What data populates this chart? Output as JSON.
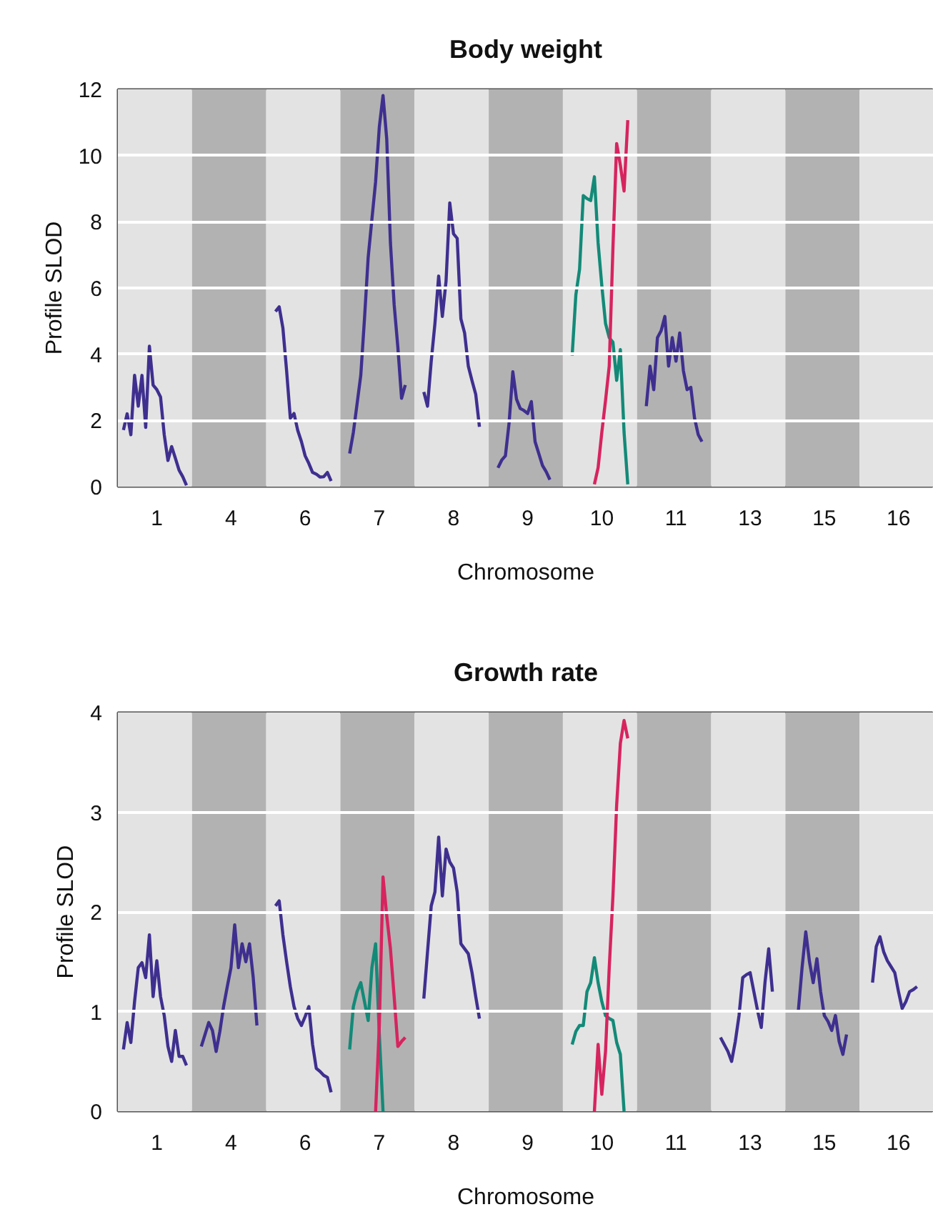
{
  "chart_data": [
    {
      "type": "line",
      "title": "Body weight",
      "xlabel": "Chromosome",
      "ylabel": "Profile SLOD",
      "categories": [
        null,
        null,
        null,
        null,
        null,
        null,
        null,
        null,
        null,
        null,
        "1",
        null,
        null,
        null,
        null,
        null,
        null,
        null,
        null,
        null,
        null,
        null,
        null,
        null,
        null,
        null,
        null,
        null,
        null,
        null,
        "4",
        null,
        null,
        null,
        null,
        null,
        null,
        null,
        null,
        null,
        null,
        null,
        null,
        null,
        null,
        null,
        null,
        null,
        null,
        null,
        "6",
        null,
        null,
        null,
        null,
        null,
        null,
        null,
        null,
        null,
        null,
        null,
        null,
        null,
        null,
        null,
        null,
        null,
        null,
        null,
        "7",
        null,
        null,
        null,
        null,
        null,
        null,
        null,
        null,
        null,
        null,
        null,
        null,
        null,
        null,
        null,
        null,
        null,
        null,
        null,
        "8",
        null,
        null,
        null,
        null,
        null,
        null,
        null,
        null,
        null,
        null,
        null,
        null,
        null,
        null,
        null,
        null,
        null,
        null,
        null,
        "9",
        null,
        null,
        null,
        null,
        null,
        null,
        null,
        null,
        null,
        null,
        null,
        null,
        null,
        null,
        null,
        null,
        null,
        null,
        null,
        "10",
        null,
        null,
        null,
        null,
        null,
        null,
        null,
        null,
        null,
        null,
        null,
        null,
        null,
        null,
        null,
        null,
        null,
        null,
        null,
        "11",
        null,
        null,
        null,
        null,
        null,
        null,
        null,
        null,
        null,
        null,
        null,
        null,
        null,
        null,
        null,
        null,
        null,
        null,
        null,
        "13",
        null,
        null,
        null,
        null,
        null,
        null,
        null,
        null,
        null,
        null,
        null,
        null,
        null,
        null,
        null,
        null,
        null,
        null,
        null,
        "15",
        null,
        null,
        null,
        null,
        null,
        null,
        null,
        null,
        null,
        null,
        null,
        null,
        null,
        null,
        null,
        null,
        null,
        null,
        null,
        "16",
        null,
        null,
        null,
        null,
        null,
        null,
        null,
        null,
        null
      ],
      "ylim": [
        0,
        12
      ],
      "yticks": [
        0,
        2,
        4,
        6,
        8,
        10,
        12
      ],
      "grid": "y",
      "series": [
        {
          "color": "#3e2f8f",
          "values": [
            null,
            1.71,
            2.2,
            1.57,
            3.36,
            2.43,
            3.36,
            1.79,
            4.24,
            3.07,
            2.93,
            2.71,
            1.57,
            0.79,
            1.21,
            0.86,
            0.5,
            0.3,
            0.04,
            null,
            null,
            null,
            null,
            null,
            null,
            null,
            null,
            null,
            null,
            null,
            null,
            null,
            null,
            null,
            null,
            null,
            null,
            null,
            null,
            null,
            null,
            null,
            5.29,
            5.43,
            4.79,
            3.5,
            2.07,
            2.21,
            1.7,
            1.36,
            0.93,
            0.7,
            0.43,
            0.38,
            0.29,
            0.3,
            0.43,
            0.17,
            null,
            null,
            null,
            null,
            1.0,
            1.64,
            2.5,
            3.36,
            5.07,
            6.93,
            8.07,
            9.21,
            10.86,
            11.81,
            10.5,
            7.36,
            5.5,
            4.21,
            2.67,
            3.07,
            null,
            null,
            null,
            null,
            2.86,
            2.43,
            3.79,
            4.93,
            6.36,
            5.14,
            6.21,
            8.57,
            7.64,
            7.5,
            5.07,
            4.64,
            3.64,
            3.2,
            2.79,
            1.81,
            null,
            null,
            null,
            null,
            0.57,
            0.8,
            0.93,
            1.93,
            3.47,
            2.64,
            2.36,
            2.3,
            2.21,
            2.57,
            1.36,
            1.0,
            0.64,
            0.45,
            0.21,
            null,
            null,
            null,
            null,
            null,
            null,
            null,
            null,
            null,
            null,
            null,
            null,
            null,
            null,
            null,
            null,
            null,
            null,
            null,
            null,
            null,
            null,
            null,
            null,
            null,
            2.43,
            3.64,
            2.93,
            4.5,
            4.71,
            5.14,
            3.64,
            4.5,
            3.79,
            4.64,
            3.5,
            2.93,
            3.0,
            2.07,
            1.57,
            1.36,
            null,
            null,
            null,
            null,
            null,
            null,
            null,
            null,
            null,
            null,
            null,
            null,
            null,
            null,
            null,
            null,
            null,
            null,
            null,
            null,
            null,
            null,
            null,
            null,
            null,
            null,
            null,
            null,
            null,
            null,
            null,
            null,
            null,
            null,
            null,
            null,
            null,
            null,
            null,
            null,
            null,
            null,
            null,
            null,
            null,
            null,
            null,
            null,
            null,
            null,
            null,
            null,
            null,
            null,
            null,
            null,
            null,
            null,
            null,
            null,
            null,
            null
          ]
        },
        {
          "color": "#138a78",
          "values": [
            null,
            null,
            null,
            null,
            null,
            null,
            null,
            null,
            null,
            null,
            null,
            null,
            null,
            null,
            null,
            null,
            null,
            null,
            null,
            null,
            null,
            null,
            null,
            null,
            null,
            null,
            null,
            null,
            null,
            null,
            null,
            null,
            null,
            null,
            null,
            null,
            null,
            null,
            null,
            null,
            null,
            null,
            null,
            null,
            null,
            null,
            null,
            null,
            null,
            null,
            null,
            null,
            null,
            null,
            null,
            null,
            null,
            null,
            null,
            null,
            null,
            null,
            null,
            null,
            null,
            null,
            null,
            null,
            null,
            null,
            null,
            null,
            null,
            null,
            null,
            null,
            null,
            null,
            null,
            null,
            null,
            null,
            null,
            null,
            null,
            null,
            null,
            null,
            null,
            null,
            null,
            null,
            null,
            null,
            null,
            null,
            null,
            null,
            null,
            null,
            null,
            null,
            null,
            null,
            null,
            null,
            null,
            null,
            null,
            null,
            null,
            null,
            null,
            null,
            null,
            null,
            null,
            null,
            null,
            null,
            null,
            null,
            3.96,
            5.79,
            6.57,
            8.79,
            8.7,
            8.64,
            9.36,
            7.36,
            6.07,
            4.93,
            4.5,
            4.36,
            3.21,
            4.14,
            1.64,
            0.07,
            null,
            null,
            null,
            null,
            null,
            null,
            null,
            null,
            null,
            null,
            null,
            null,
            null,
            null,
            null,
            null,
            null,
            null,
            null,
            null,
            null,
            null,
            null,
            null,
            null,
            null,
            null,
            null,
            null,
            null,
            null,
            null,
            null,
            null,
            null,
            null,
            null,
            null,
            null,
            null,
            null,
            null,
            null,
            null,
            null,
            null,
            null,
            null,
            null,
            null,
            null,
            null,
            null,
            null,
            null,
            null,
            null,
            null,
            null,
            null,
            null,
            null,
            null,
            null,
            null,
            null,
            null,
            null,
            null,
            null,
            null,
            null,
            null,
            null,
            null,
            null,
            null,
            null,
            null,
            null,
            null,
            null
          ]
        },
        {
          "color": "#d6245f",
          "values": [
            null,
            null,
            null,
            null,
            null,
            null,
            null,
            null,
            null,
            null,
            null,
            null,
            null,
            null,
            null,
            null,
            null,
            null,
            null,
            null,
            null,
            null,
            null,
            null,
            null,
            null,
            null,
            null,
            null,
            null,
            null,
            null,
            null,
            null,
            null,
            null,
            null,
            null,
            null,
            null,
            null,
            null,
            null,
            null,
            null,
            null,
            null,
            null,
            null,
            null,
            null,
            null,
            null,
            null,
            null,
            null,
            null,
            null,
            null,
            null,
            null,
            null,
            null,
            null,
            null,
            null,
            null,
            null,
            null,
            null,
            null,
            null,
            null,
            null,
            null,
            null,
            null,
            null,
            null,
            null,
            null,
            null,
            null,
            null,
            null,
            null,
            null,
            null,
            null,
            null,
            null,
            null,
            null,
            null,
            null,
            null,
            null,
            null,
            null,
            null,
            null,
            null,
            null,
            null,
            null,
            null,
            null,
            null,
            null,
            null,
            null,
            null,
            null,
            null,
            null,
            null,
            null,
            null,
            null,
            null,
            null,
            null,
            null,
            null,
            null,
            null,
            null,
            null,
            0.07,
            0.57,
            1.64,
            2.6,
            3.64,
            7.21,
            10.36,
            9.71,
            8.93,
            11.07,
            null,
            null,
            null,
            null,
            null,
            null,
            null,
            null,
            null,
            null,
            null,
            null,
            null,
            null,
            null,
            null,
            null,
            null,
            null,
            null,
            null,
            null,
            null,
            null,
            null,
            null,
            null,
            null,
            null,
            null,
            null,
            null,
            null,
            null,
            null,
            null,
            null,
            null,
            null,
            null,
            null,
            null,
            null,
            null,
            null,
            null,
            null,
            null,
            null,
            null,
            null,
            null,
            null,
            null,
            null,
            null,
            null,
            null,
            null,
            null,
            null,
            null,
            null,
            null,
            null,
            null,
            null,
            null,
            null,
            null,
            null,
            null,
            null,
            null,
            null,
            null,
            null,
            null,
            null,
            null,
            null,
            null
          ]
        }
      ]
    },
    {
      "type": "line",
      "title": "Growth rate",
      "xlabel": "Chromosome",
      "ylabel": "Profile SLOD",
      "categories": [
        null,
        null,
        null,
        null,
        null,
        null,
        null,
        null,
        null,
        null,
        "1",
        null,
        null,
        null,
        null,
        null,
        null,
        null,
        null,
        null,
        null,
        null,
        null,
        null,
        null,
        null,
        null,
        null,
        null,
        null,
        "4",
        null,
        null,
        null,
        null,
        null,
        null,
        null,
        null,
        null,
        null,
        null,
        null,
        null,
        null,
        null,
        null,
        null,
        null,
        null,
        "6",
        null,
        null,
        null,
        null,
        null,
        null,
        null,
        null,
        null,
        null,
        null,
        null,
        null,
        null,
        null,
        null,
        null,
        null,
        null,
        "7",
        null,
        null,
        null,
        null,
        null,
        null,
        null,
        null,
        null,
        null,
        null,
        null,
        null,
        null,
        null,
        null,
        null,
        null,
        null,
        "8",
        null,
        null,
        null,
        null,
        null,
        null,
        null,
        null,
        null,
        null,
        null,
        null,
        null,
        null,
        null,
        null,
        null,
        null,
        null,
        "9",
        null,
        null,
        null,
        null,
        null,
        null,
        null,
        null,
        null,
        null,
        null,
        null,
        null,
        null,
        null,
        null,
        null,
        null,
        null,
        "10",
        null,
        null,
        null,
        null,
        null,
        null,
        null,
        null,
        null,
        null,
        null,
        null,
        null,
        null,
        null,
        null,
        null,
        null,
        null,
        "11",
        null,
        null,
        null,
        null,
        null,
        null,
        null,
        null,
        null,
        null,
        null,
        null,
        null,
        null,
        null,
        null,
        null,
        null,
        null,
        "13",
        null,
        null,
        null,
        null,
        null,
        null,
        null,
        null,
        null,
        null,
        null,
        null,
        null,
        null,
        null,
        null,
        null,
        null,
        null,
        "15",
        null,
        null,
        null,
        null,
        null,
        null,
        null,
        null,
        null,
        null,
        null,
        null,
        null,
        null,
        null,
        null,
        null,
        null,
        null,
        "16",
        null,
        null,
        null,
        null,
        null,
        null,
        null,
        null,
        null
      ],
      "ylim": [
        0,
        4
      ],
      "yticks": [
        0,
        1,
        2,
        3,
        4
      ],
      "grid": "y",
      "series": [
        {
          "color": "#3e2f8f",
          "values": [
            null,
            0.62,
            0.89,
            0.69,
            1.1,
            1.44,
            1.49,
            1.34,
            1.77,
            1.15,
            1.51,
            1.15,
            0.96,
            0.65,
            0.5,
            0.81,
            0.55,
            0.55,
            0.46,
            null,
            null,
            null,
            0.65,
            0.77,
            0.89,
            0.81,
            0.6,
            0.8,
            1.05,
            1.25,
            1.44,
            1.87,
            1.44,
            1.68,
            1.5,
            1.68,
            1.34,
            0.86,
            null,
            null,
            null,
            null,
            2.06,
            2.11,
            1.77,
            1.5,
            1.25,
            1.05,
            0.93,
            0.86,
            0.95,
            1.05,
            0.67,
            0.43,
            0.4,
            0.36,
            0.34,
            0.19,
            null,
            null,
            null,
            null,
            null,
            null,
            null,
            null,
            null,
            null,
            null,
            null,
            null,
            null,
            null,
            null,
            null,
            null,
            null,
            null,
            null,
            null,
            null,
            null,
            1.13,
            1.6,
            2.06,
            2.2,
            2.75,
            2.16,
            2.63,
            2.5,
            2.44,
            2.2,
            1.68,
            1.63,
            1.58,
            1.39,
            1.15,
            0.93,
            null,
            null,
            null,
            null,
            null,
            null,
            null,
            null,
            null,
            null,
            null,
            null,
            null,
            null,
            null,
            null,
            null,
            null,
            null,
            null,
            null,
            null,
            null,
            null,
            null,
            null,
            null,
            null,
            null,
            null,
            null,
            null,
            null,
            null,
            null,
            null,
            null,
            null,
            null,
            null,
            null,
            null,
            null,
            null,
            null,
            null,
            null,
            null,
            null,
            null,
            null,
            null,
            null,
            null,
            null,
            null,
            null,
            null,
            null,
            null,
            null,
            null,
            null,
            null,
            0.74,
            0.67,
            0.6,
            0.5,
            0.7,
            0.96,
            1.34,
            1.37,
            1.39,
            1.2,
            1.01,
            0.84,
            1.29,
            1.63,
            1.2,
            null,
            null,
            null,
            null,
            null,
            null,
            1.01,
            1.44,
            1.8,
            1.5,
            1.29,
            1.53,
            1.2,
            0.96,
            0.9,
            0.81,
            0.96,
            0.7,
            0.57,
            0.77,
            null,
            null,
            null,
            null,
            null,
            null,
            1.29,
            1.65,
            1.75,
            1.6,
            1.51,
            1.45,
            1.39,
            1.2,
            1.03,
            1.1,
            1.2,
            1.22,
            1.25,
            null,
            null,
            null,
            null
          ]
        },
        {
          "color": "#138a78",
          "values": [
            null,
            null,
            null,
            null,
            null,
            null,
            null,
            null,
            null,
            null,
            null,
            null,
            null,
            null,
            null,
            null,
            null,
            null,
            null,
            null,
            null,
            null,
            null,
            null,
            null,
            null,
            null,
            null,
            null,
            null,
            null,
            null,
            null,
            null,
            null,
            null,
            null,
            null,
            null,
            null,
            null,
            null,
            null,
            null,
            null,
            null,
            null,
            null,
            null,
            null,
            null,
            null,
            null,
            null,
            null,
            null,
            null,
            null,
            null,
            null,
            null,
            null,
            0.62,
            1.05,
            1.2,
            1.29,
            1.1,
            0.91,
            1.44,
            1.68,
            0.77,
            0,
            null,
            null,
            null,
            null,
            null,
            null,
            null,
            null,
            null,
            null,
            null,
            null,
            null,
            null,
            null,
            null,
            null,
            null,
            null,
            null,
            null,
            null,
            null,
            null,
            null,
            null,
            null,
            null,
            null,
            null,
            null,
            null,
            null,
            null,
            null,
            null,
            null,
            null,
            null,
            null,
            null,
            null,
            null,
            null,
            null,
            null,
            null,
            null,
            null,
            null,
            0.67,
            0.8,
            0.86,
            0.86,
            1.2,
            1.29,
            1.54,
            1.29,
            1.1,
            0.96,
            0.93,
            0.91,
            0.69,
            0.57,
            0,
            null,
            null,
            null,
            null,
            null,
            null,
            null,
            null,
            null,
            null,
            null,
            null,
            null,
            null,
            null,
            null,
            null,
            null,
            null,
            null,
            null,
            null,
            null,
            null,
            null,
            null,
            null,
            null,
            null,
            null,
            null,
            null,
            null,
            null,
            null,
            null,
            null,
            null,
            null,
            null,
            null,
            null,
            null,
            null,
            null,
            null,
            null,
            null,
            null,
            null,
            null,
            null,
            null,
            null,
            null,
            null,
            null,
            null,
            null,
            null,
            null,
            null,
            null,
            null,
            null,
            null,
            null,
            null,
            null,
            null,
            null,
            null,
            null,
            null,
            null,
            null,
            null,
            null,
            null,
            null,
            null,
            null,
            null
          ]
        },
        {
          "color": "#d6245f",
          "values": [
            null,
            null,
            null,
            null,
            null,
            null,
            null,
            null,
            null,
            null,
            null,
            null,
            null,
            null,
            null,
            null,
            null,
            null,
            null,
            null,
            null,
            null,
            null,
            null,
            null,
            null,
            null,
            null,
            null,
            null,
            null,
            null,
            null,
            null,
            null,
            null,
            null,
            null,
            null,
            null,
            null,
            null,
            null,
            null,
            null,
            null,
            null,
            null,
            null,
            null,
            null,
            null,
            null,
            null,
            null,
            null,
            null,
            null,
            null,
            null,
            null,
            null,
            null,
            null,
            null,
            null,
            null,
            null,
            null,
            0,
            0.86,
            2.35,
            1.96,
            1.63,
            1.15,
            0.65,
            0.7,
            0.74,
            null,
            null,
            null,
            null,
            null,
            null,
            null,
            null,
            null,
            null,
            null,
            null,
            null,
            null,
            null,
            null,
            null,
            null,
            null,
            null,
            null,
            null,
            null,
            null,
            null,
            null,
            null,
            null,
            null,
            null,
            null,
            null,
            null,
            null,
            null,
            null,
            null,
            null,
            null,
            null,
            null,
            null,
            null,
            null,
            null,
            null,
            null,
            null,
            null,
            null,
            0,
            0.67,
            0.17,
            0.6,
            1.44,
            2.16,
            3.07,
            3.69,
            3.92,
            3.74,
            null,
            null,
            null,
            null,
            null,
            null,
            null,
            null,
            null,
            null,
            null,
            null,
            null,
            null,
            null,
            null,
            null,
            null,
            null,
            null,
            null,
            null,
            null,
            null,
            null,
            null,
            null,
            null,
            null,
            null,
            null,
            null,
            null,
            null,
            null,
            null,
            null,
            null,
            null,
            null,
            null,
            null,
            null,
            null,
            null,
            null,
            null,
            null,
            null,
            null,
            null,
            null,
            null,
            null,
            null,
            null,
            null,
            null,
            null,
            null,
            null,
            null,
            null,
            null,
            null,
            null,
            null,
            null,
            null,
            null,
            null,
            null,
            null,
            null,
            null,
            null,
            null,
            null,
            null,
            null,
            null,
            null
          ]
        }
      ]
    }
  ]
}
